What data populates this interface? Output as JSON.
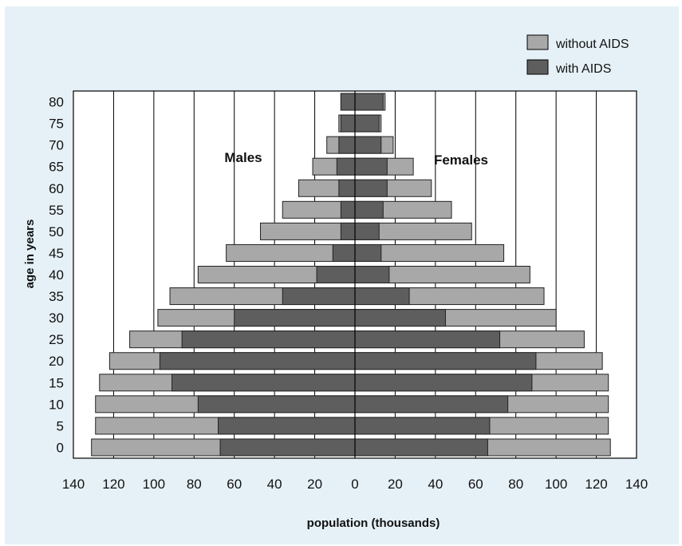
{
  "chart_data": {
    "type": "bar",
    "subtype": "population-pyramid",
    "xlabel": "population (thousands)",
    "ylabel": "age in years",
    "xlim": [
      -140,
      140
    ],
    "xticks": [
      -140,
      -120,
      -100,
      -80,
      -60,
      -40,
      -20,
      0,
      20,
      40,
      60,
      80,
      100,
      120,
      140
    ],
    "xtick_labels": [
      "140",
      "120",
      "100",
      "80",
      "60",
      "40",
      "20",
      "0",
      "20",
      "40",
      "60",
      "80",
      "100",
      "120",
      "140"
    ],
    "categories": [
      "0",
      "5",
      "10",
      "15",
      "20",
      "25",
      "30",
      "35",
      "40",
      "45",
      "50",
      "55",
      "60",
      "65",
      "70",
      "75",
      "80"
    ],
    "annotations": [
      {
        "text": "Males",
        "side": "left"
      },
      {
        "text": "Females",
        "side": "right"
      }
    ],
    "legend_position": "top-right",
    "grid": "vertical",
    "colors": {
      "without_aids": "#a8a8a8",
      "with_aids": "#5e5e5e",
      "background": "#e6f1f7",
      "plot_background": "#ffffff"
    },
    "series": [
      {
        "name": "without AIDS",
        "key": "without_aids",
        "males": [
          131,
          129,
          129,
          127,
          122,
          112,
          98,
          92,
          78,
          64,
          47,
          36,
          28,
          21,
          14,
          8,
          7
        ],
        "females": [
          127,
          126,
          126,
          126,
          123,
          114,
          100,
          94,
          87,
          74,
          58,
          48,
          38,
          29,
          19,
          13,
          15
        ]
      },
      {
        "name": "with AIDS",
        "key": "with_aids",
        "males": [
          67,
          68,
          78,
          91,
          97,
          86,
          60,
          36,
          19,
          11,
          7,
          7,
          8,
          9,
          8,
          7,
          7
        ],
        "females": [
          66,
          67,
          76,
          88,
          90,
          72,
          45,
          27,
          17,
          13,
          12,
          14,
          16,
          16,
          13,
          12,
          14
        ]
      }
    ]
  }
}
